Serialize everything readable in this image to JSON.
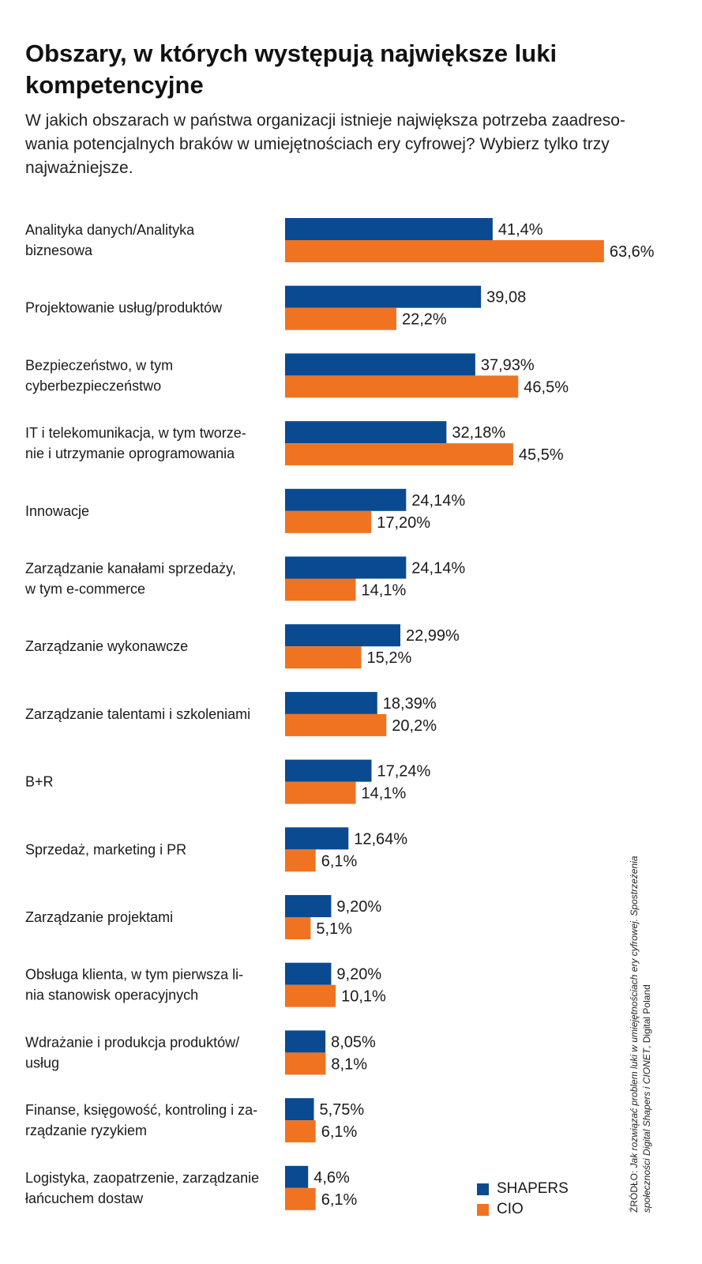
{
  "chart_data": {
    "type": "bar",
    "orientation": "horizontal",
    "title": "Obszary, w których występują największe luki kompetencyjne",
    "subtitle": "W jakich obszarach w państwa organizacji istnieje największa potrzeba zaadreso-wania potencjalnych braków w umiejętnościach ery cyfrowej? Wybierz tylko trzy najważniejsze.",
    "categories": [
      [
        "Analityka danych/Analityka",
        "biznesowa"
      ],
      [
        "Projektowanie usług/produktów"
      ],
      [
        "Bezpieczeństwo, w tym",
        "cyberbezpieczeństwo"
      ],
      [
        "IT i telekomunikacja, w tym tworze-",
        "nie i utrzymanie oprogramowania"
      ],
      [
        "Innowacje"
      ],
      [
        "Zarządzanie kanałami sprzedaży,",
        "w tym e-commerce"
      ],
      [
        "Zarządzanie wykonawcze"
      ],
      [
        "Zarządzanie talentami i szkoleniami"
      ],
      [
        "B+R"
      ],
      [
        "Sprzedaż, marketing i PR"
      ],
      [
        "Zarządzanie projektami"
      ],
      [
        "Obsługa klienta, w tym pierwsza li-",
        "nia stanowisk operacyjnych"
      ],
      [
        "Wdrażanie i produkcja produktów/",
        "usług"
      ],
      [
        "Finanse, księgowość, kontroling i za-",
        "rządzanie ryzykiem"
      ],
      [
        "Logistyka, zaopatrzenie, zarządzanie",
        "łańcuchem dostaw"
      ]
    ],
    "series": [
      {
        "name": "SHAPERS",
        "color": "#0a4a91",
        "values": [
          41.4,
          39.08,
          37.93,
          32.18,
          24.14,
          24.14,
          22.99,
          18.39,
          17.24,
          12.64,
          9.2,
          9.2,
          8.05,
          5.75,
          4.6
        ],
        "labels": [
          "41,4%",
          "39,08",
          "37,93%",
          "32,18%",
          "24,14%",
          "24,14%",
          "22,99%",
          "18,39%",
          "17,24%",
          "12,64%",
          "9,20%",
          "9,20%",
          "8,05%",
          "5,75%",
          "4,6%"
        ]
      },
      {
        "name": "CIO",
        "color": "#f07322",
        "values": [
          63.6,
          22.2,
          46.5,
          45.5,
          17.2,
          14.1,
          15.2,
          20.2,
          14.1,
          6.1,
          5.1,
          10.1,
          8.1,
          6.1,
          6.1
        ],
        "labels": [
          "63,6%",
          "22,2%",
          "46,5%",
          "45,5%",
          "17,20%",
          "14,1%",
          "15,2%",
          "20,2%",
          "14,1%",
          "6,1%",
          "5,1%",
          "10,1%",
          "8,1%",
          "6,1%",
          "6,1%"
        ]
      }
    ],
    "legend_position": "bottom-right",
    "grid": false,
    "axes_visible": false
  },
  "legend": {
    "shapers_label": "SHAPERS",
    "cio_label": "CIO"
  },
  "source": {
    "prefix": "ŹRÓDŁO: ",
    "italic_text": "Jak rozwiązać problem luki w umiejętnościach ery cyfrowej. Spostrzeżenia społeczności Digital Shapers i CIONET",
    "suffix": ", Digital Poland"
  }
}
